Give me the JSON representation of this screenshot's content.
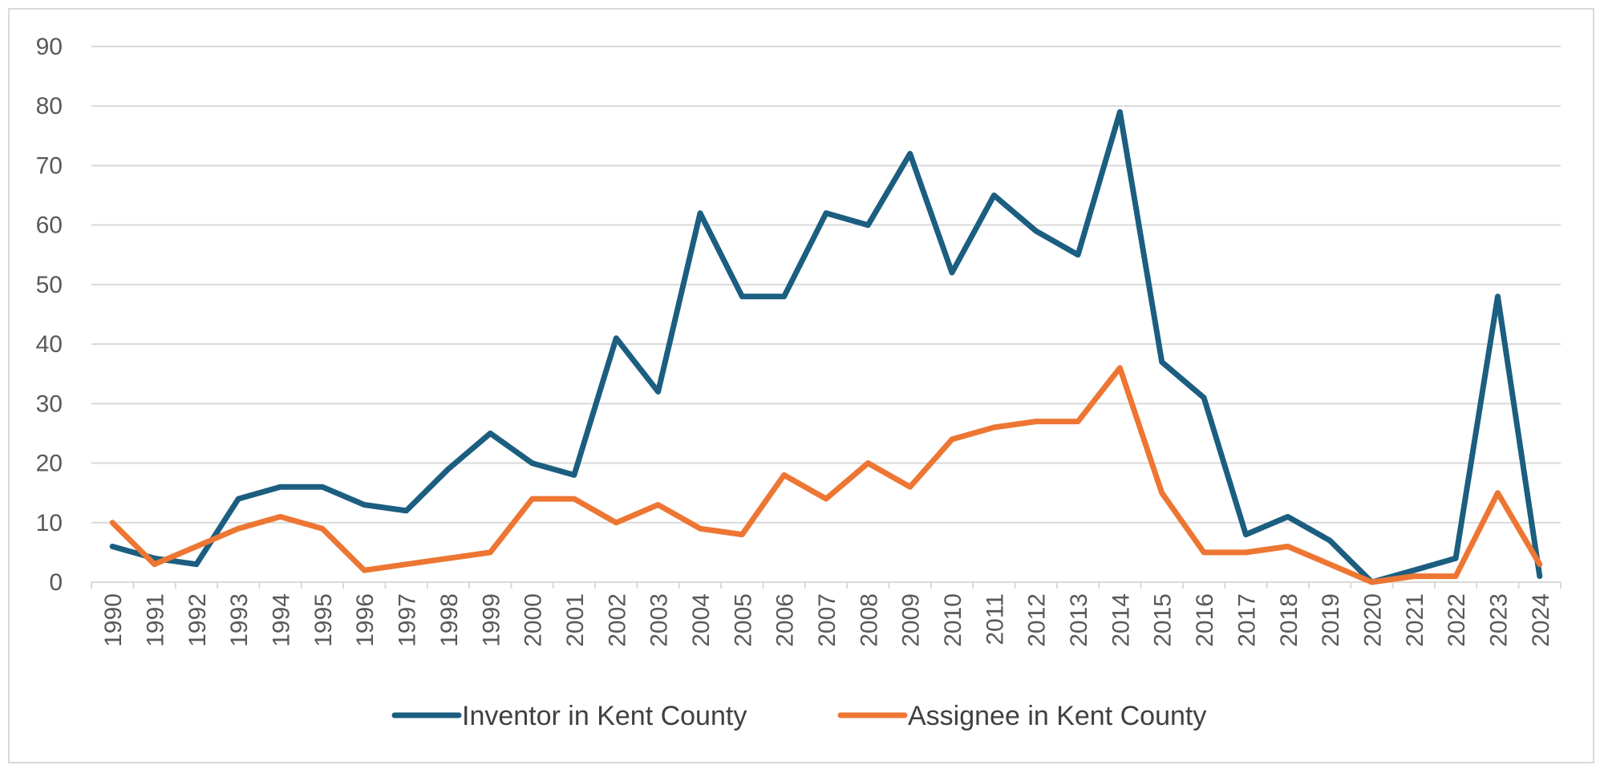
{
  "chart_data": {
    "type": "line",
    "title": "",
    "xlabel": "",
    "ylabel": "",
    "ylim": [
      0,
      90
    ],
    "yticks": [
      0,
      10,
      20,
      30,
      40,
      50,
      60,
      70,
      80,
      90
    ],
    "categories": [
      "1990",
      "1991",
      "1992",
      "1993",
      "1994",
      "1995",
      "1996",
      "1997",
      "1998",
      "1999",
      "2000",
      "2001",
      "2002",
      "2003",
      "2004",
      "2005",
      "2006",
      "2007",
      "2008",
      "2009",
      "2010",
      "2011",
      "2012",
      "2013",
      "2014",
      "2015",
      "2016",
      "2017",
      "2018",
      "2019",
      "2020",
      "2021",
      "2022",
      "2023",
      "2024"
    ],
    "series": [
      {
        "name": "Inventor in Kent County",
        "color": "#1b5e80",
        "values": [
          6,
          4,
          3,
          14,
          16,
          16,
          13,
          12,
          19,
          25,
          20,
          18,
          41,
          32,
          62,
          48,
          48,
          62,
          60,
          72,
          52,
          65,
          59,
          55,
          79,
          37,
          31,
          8,
          11,
          7,
          0,
          2,
          4,
          48,
          1
        ]
      },
      {
        "name": "Assignee in Kent County",
        "color": "#ed7633",
        "values": [
          10,
          3,
          6,
          9,
          11,
          9,
          2,
          3,
          4,
          5,
          14,
          14,
          10,
          13,
          9,
          8,
          18,
          14,
          20,
          16,
          24,
          26,
          27,
          27,
          36,
          15,
          5,
          5,
          6,
          3,
          0,
          1,
          1,
          15,
          3
        ]
      }
    ],
    "legend_position": "bottom-center",
    "grid": true
  }
}
